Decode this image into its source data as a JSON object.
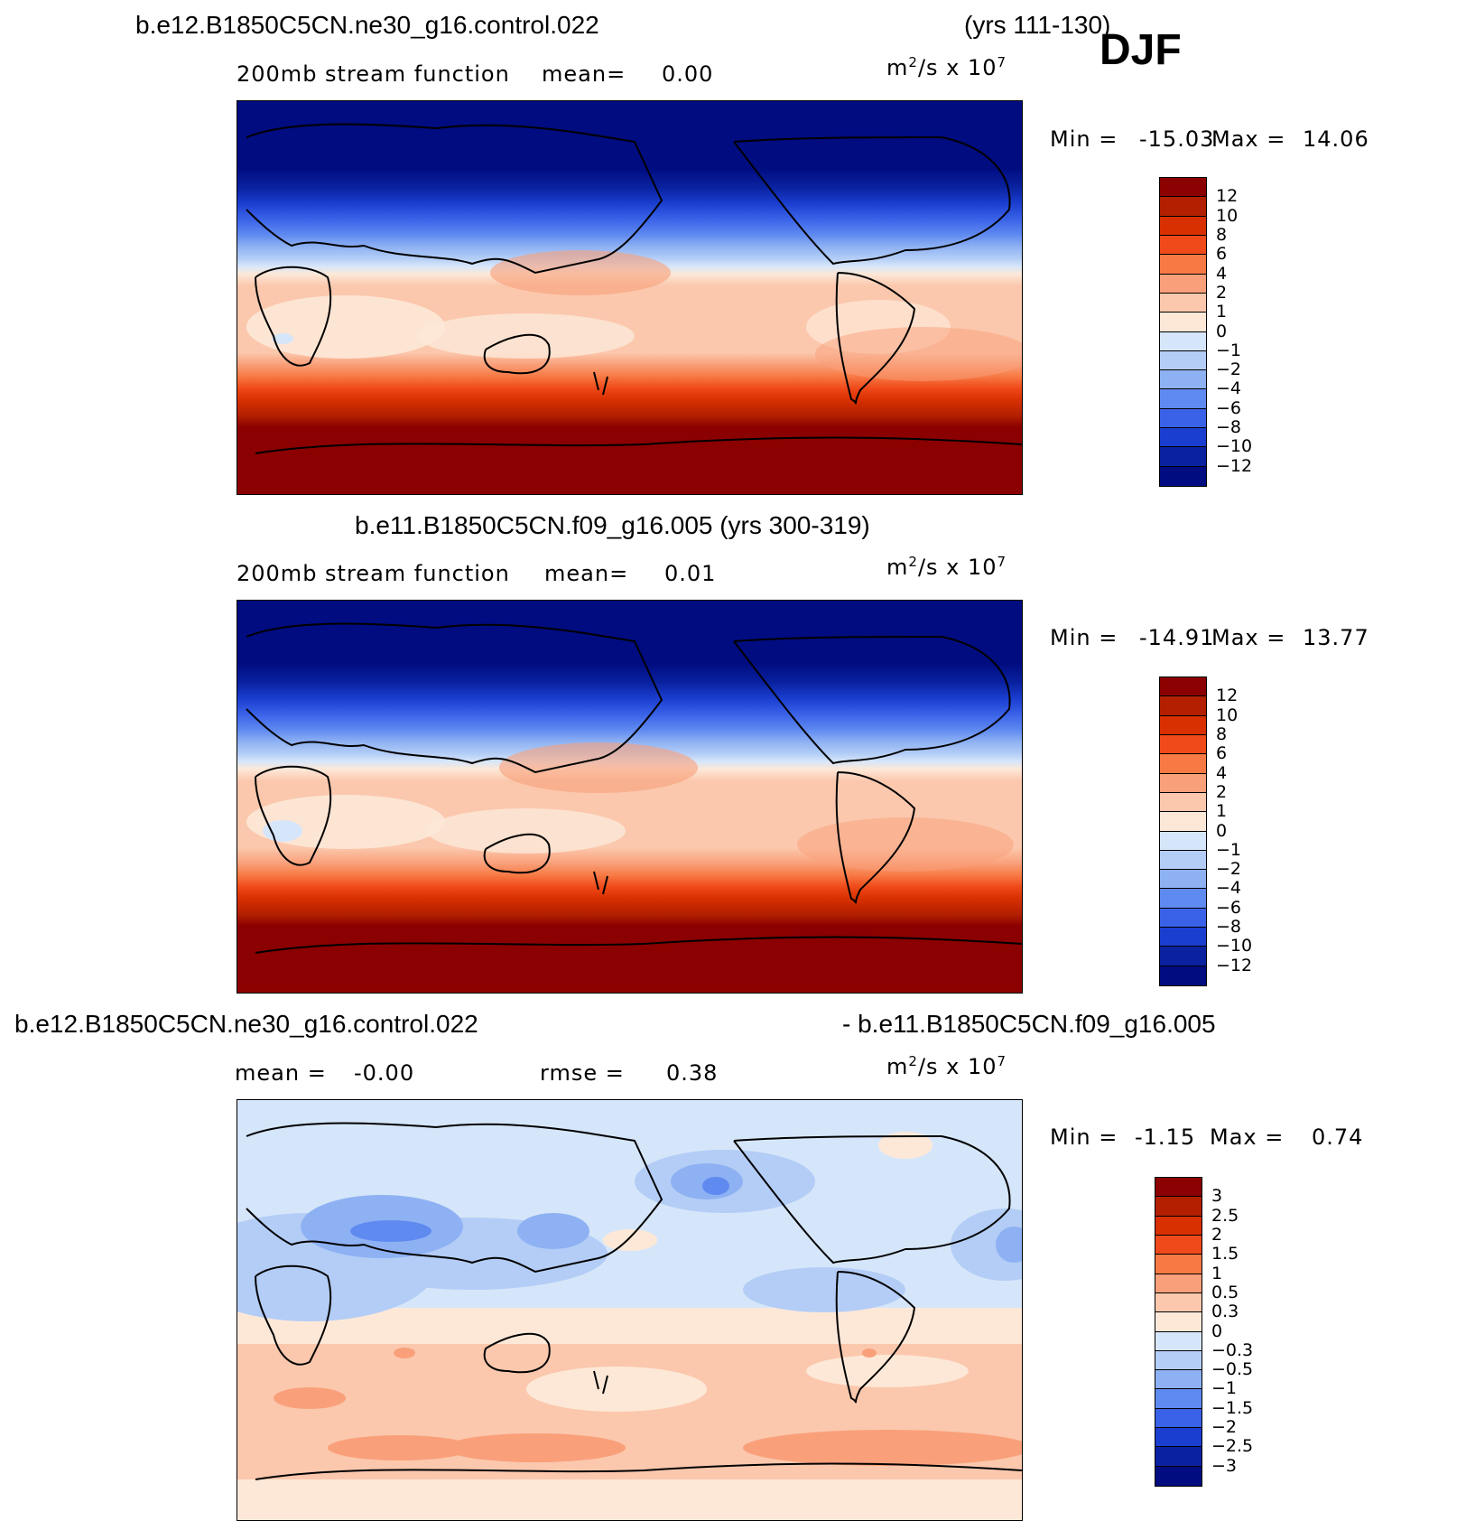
{
  "header": {
    "case_top": "b.e12.B1850C5CN.ne30_g16.control.022",
    "years_top": "(yrs 111-130)",
    "season": "DJF"
  },
  "panels": [
    {
      "id": "top",
      "subtitle_left": "200mb stream function",
      "stat1_label": "mean=",
      "stat1_value": "0.00",
      "stat2_label": "",
      "stat2_value": "",
      "units_base": "m",
      "units_exp": "2",
      "units_mid": "/s x 10",
      "units_exp2": "7",
      "min_label": "Min =",
      "min_value": "-15.03",
      "max_label": "Max =",
      "max_value": "14.06",
      "legend_labels": [
        "12",
        "10",
        "8",
        "6",
        "4",
        "2",
        "1",
        "0",
        "-1",
        "-2",
        "-4",
        "-6",
        "-8",
        "-10",
        "-12"
      ],
      "legend_colors": [
        "#8b0000",
        "#b22000",
        "#d83000",
        "#f04a1a",
        "#f77a45",
        "#f9a07a",
        "#fbc8ad",
        "#fde8d8",
        "#d6e6fa",
        "#b3cdf6",
        "#8eb1f3",
        "#5f8af0",
        "#3a62e8",
        "#1a3ed0",
        "#0a22a0",
        "#000c80"
      ]
    },
    {
      "id": "middle",
      "case": "b.e11.B1850C5CN.f09_g16.005 (yrs 300-319)",
      "subtitle_left": "200mb stream function",
      "stat1_label": "mean=",
      "stat1_value": "0.01",
      "units_base": "m",
      "units_exp": "2",
      "units_mid": "/s x 10",
      "units_exp2": "7",
      "min_label": "Min =",
      "min_value": "-14.91",
      "max_label": "Max =",
      "max_value": "13.77",
      "legend_labels": [
        "12",
        "10",
        "8",
        "6",
        "4",
        "2",
        "1",
        "0",
        "-1",
        "-2",
        "-4",
        "-6",
        "-8",
        "-10",
        "-12"
      ],
      "legend_colors": [
        "#8b0000",
        "#b22000",
        "#d83000",
        "#f04a1a",
        "#f77a45",
        "#f9a07a",
        "#fbc8ad",
        "#fde8d8",
        "#d6e6fa",
        "#b3cdf6",
        "#8eb1f3",
        "#5f8af0",
        "#3a62e8",
        "#1a3ed0",
        "#0a22a0",
        "#000c80"
      ]
    },
    {
      "id": "bottom",
      "case_left": "b.e12.B1850C5CN.ne30_g16.control.022",
      "case_right": "- b.e11.B1850C5CN.f09_g16.005",
      "stat1_label": "mean =",
      "stat1_value": "-0.00",
      "stat2_label": "rmse =",
      "stat2_value": "0.38",
      "units_base": "m",
      "units_exp": "2",
      "units_mid": "/s x 10",
      "units_exp2": "7",
      "min_label": "Min =",
      "min_value": "-1.15",
      "max_label": "Max =",
      "max_value": "0.74",
      "legend_labels": [
        "3",
        "2.5",
        "2",
        "1.5",
        "1",
        "0.5",
        "0.3",
        "0",
        "-0.3",
        "-0.5",
        "-1",
        "-1.5",
        "-2",
        "-2.5",
        "-3"
      ],
      "legend_colors": [
        "#8b0000",
        "#b22000",
        "#d83000",
        "#f04a1a",
        "#f77a45",
        "#f9a07a",
        "#fbc8ad",
        "#fde8d8",
        "#d6e6fa",
        "#b3cdf6",
        "#8eb1f3",
        "#5f8af0",
        "#3a62e8",
        "#1a3ed0",
        "#0a22a0",
        "#000c80"
      ]
    }
  ]
}
